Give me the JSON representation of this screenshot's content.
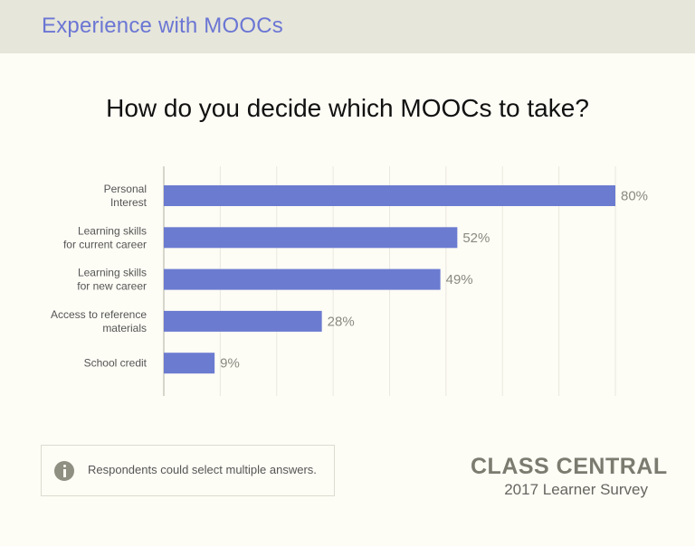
{
  "header": {
    "title": "Experience with MOOCs"
  },
  "chart_data": {
    "type": "bar",
    "orientation": "horizontal",
    "title": "How do you decide which MOOCs to take?",
    "categories": [
      [
        "Personal",
        "Interest"
      ],
      [
        "Learning skills",
        "for current career"
      ],
      [
        "Learning skills",
        "for new career"
      ],
      [
        "Access to reference",
        "materials"
      ],
      [
        "School credit"
      ]
    ],
    "values": [
      80,
      52,
      49,
      28,
      9
    ],
    "value_labels": [
      "80%",
      "52%",
      "49%",
      "28%",
      "9%"
    ],
    "xlim": [
      0,
      80
    ],
    "grid": true,
    "bar_color": "#6b7bd0"
  },
  "note": {
    "text": "Respondents could select multiple answers.",
    "icon": "info-icon"
  },
  "brand": {
    "name": "CLASS CENTRAL",
    "subtitle": "2017 Learner Survey"
  },
  "colors": {
    "accent": "#6b76d4",
    "header_bg": "#e6e6da",
    "page_bg": "#fdfcf5"
  }
}
